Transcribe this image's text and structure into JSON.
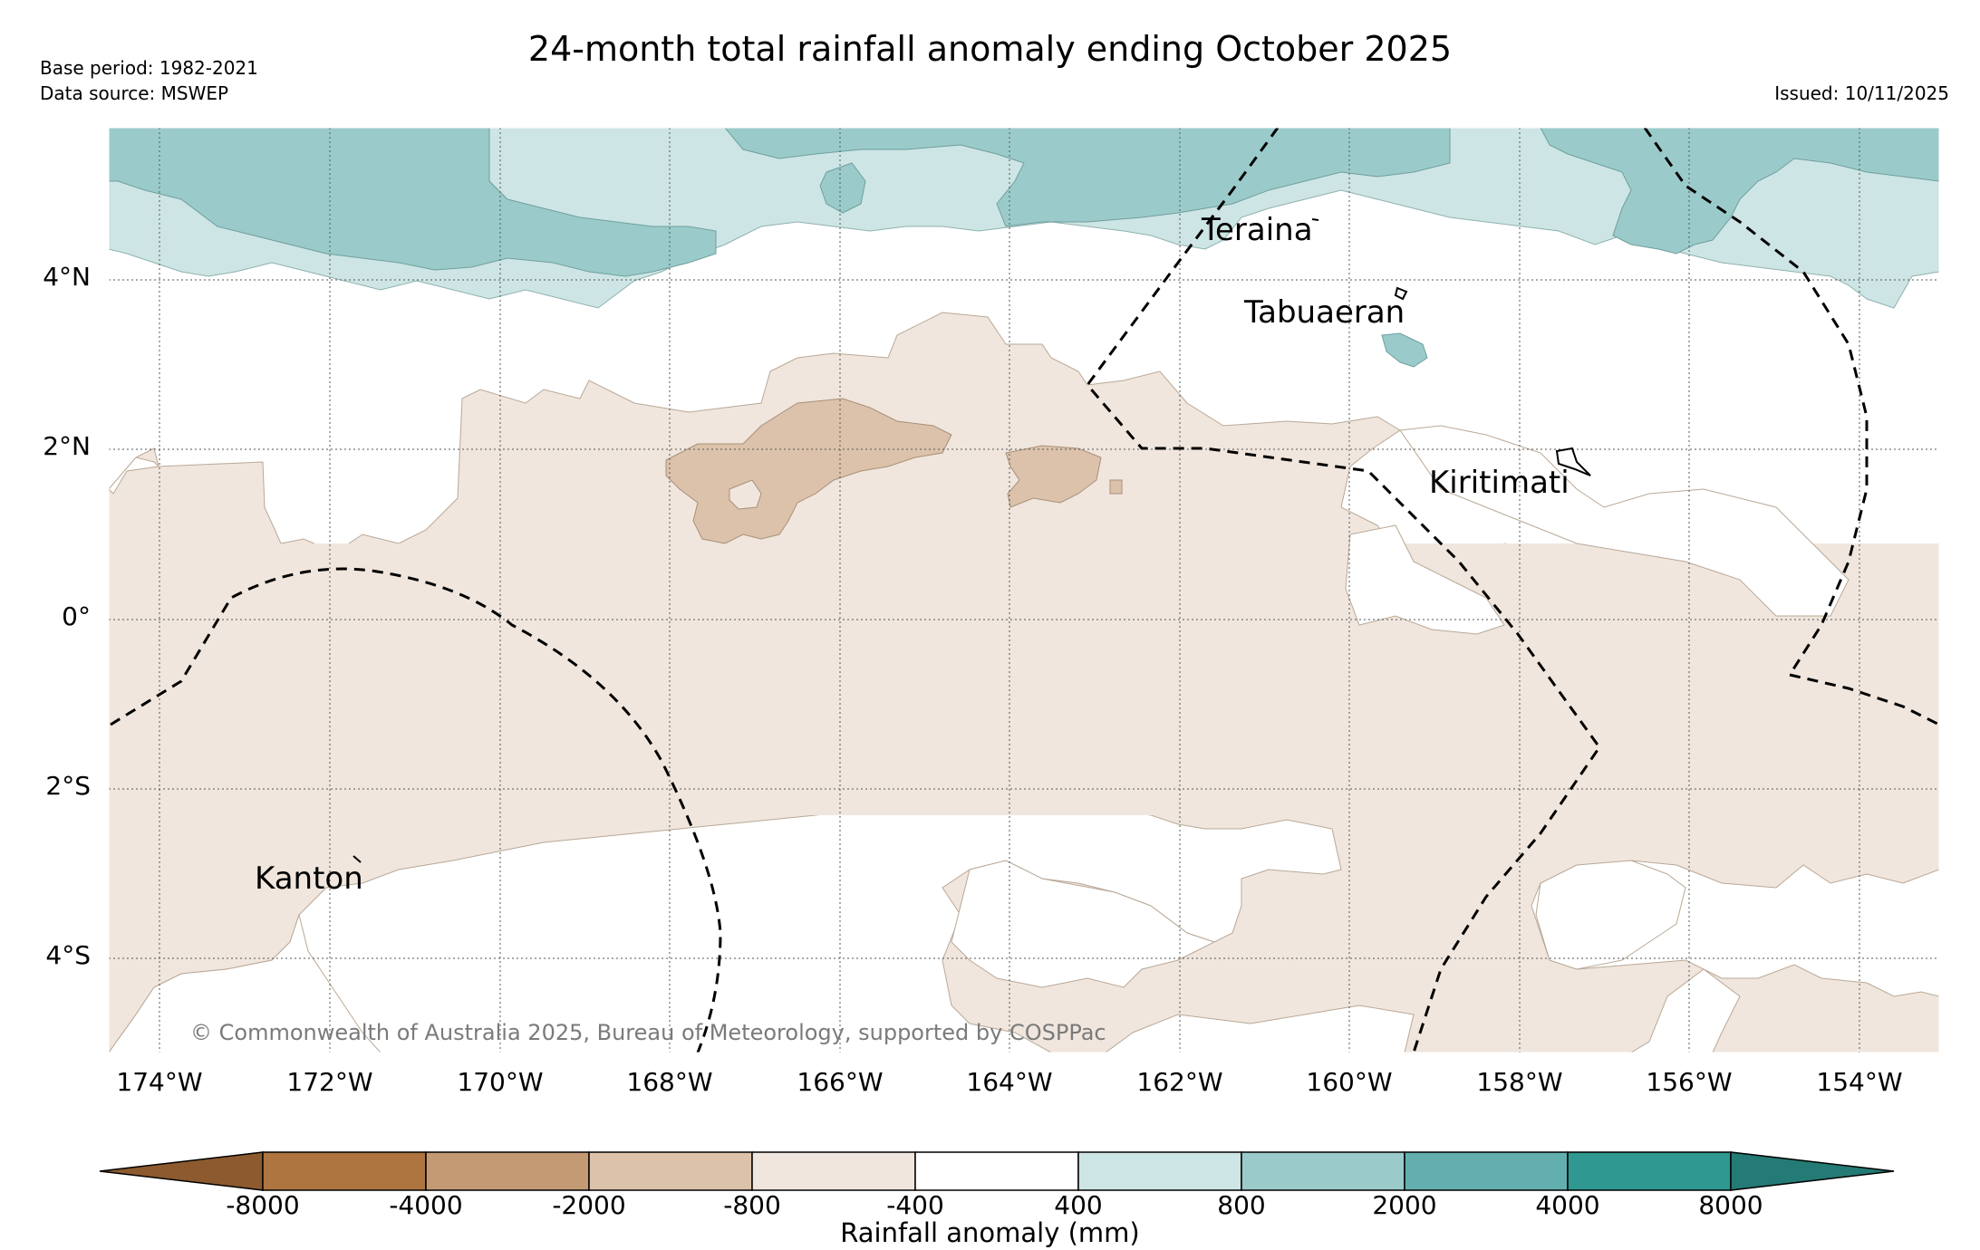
{
  "header": {
    "title": "24-month total rainfall anomaly ending October 2025",
    "base_period": "Base period: 1982-2021",
    "data_source": "Data source: MSWEP",
    "issued": "Issued: 10/11/2025"
  },
  "map": {
    "lat_labels": [
      "4°N",
      "2°N",
      "0°",
      "2°S",
      "4°S"
    ],
    "lon_labels": [
      "174°W",
      "172°W",
      "170°W",
      "168°W",
      "166°W",
      "164°W",
      "162°W",
      "160°W",
      "158°W",
      "156°W",
      "154°W"
    ],
    "islands": [
      "Teraina",
      "Tabuaeran",
      "Kiritimati",
      "Kanton"
    ],
    "copyright": "© Commonwealth of Australia 2025, Bureau of Meteorology, supported by COSPPac"
  },
  "colorbar": {
    "title": "Rainfall anomaly (mm)",
    "ticks": [
      "-8000",
      "-4000",
      "-2000",
      "-800",
      "-400",
      "400",
      "800",
      "2000",
      "4000",
      "8000"
    ],
    "colors": {
      "below_min": "#8c5a2e",
      "c1": "#ae7540",
      "c2": "#c49a74",
      "c3": "#dcc2aa",
      "c4": "#f0e6dd",
      "c5": "#ffffff",
      "c6": "#cde5e4",
      "c7": "#9acbca",
      "c8": "#62afae",
      "c9": "#2f9891",
      "above_max": "#247a74"
    }
  }
}
